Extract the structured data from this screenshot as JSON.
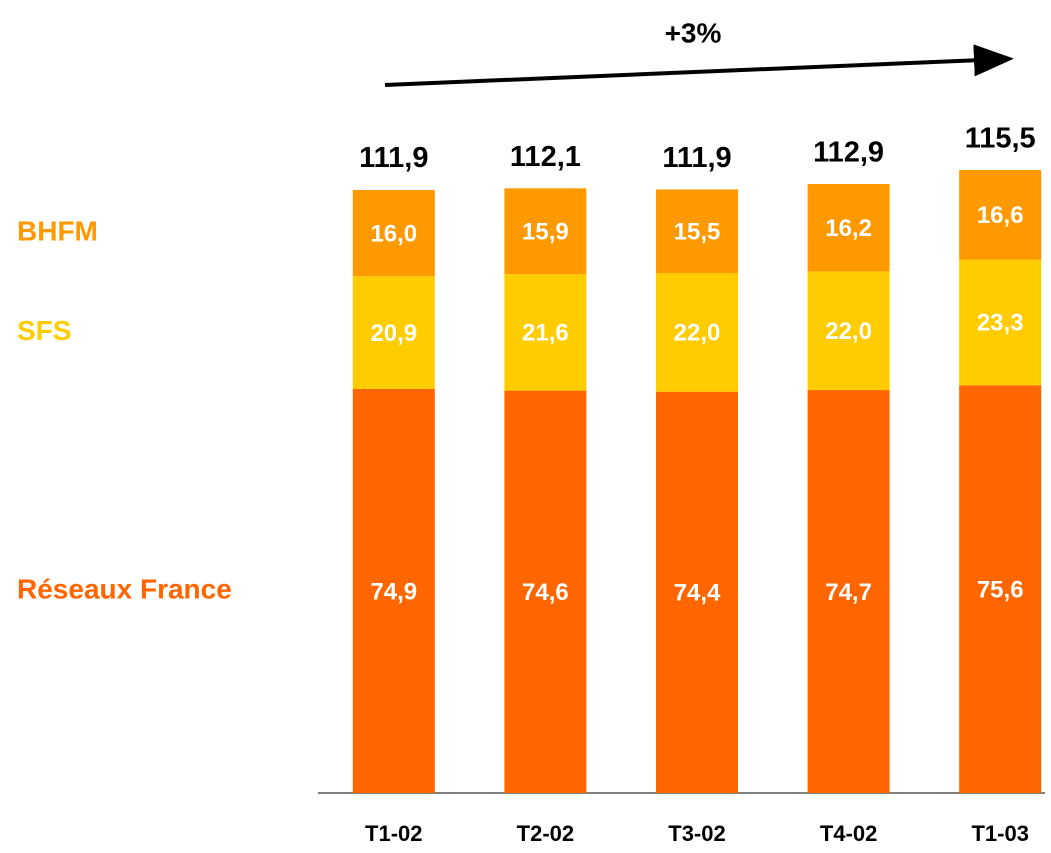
{
  "chart_data": {
    "type": "stacked-bar",
    "annotation": "+3%",
    "categories": [
      "T1-02",
      "T2-02",
      "T3-02",
      "T4-02",
      "T1-03"
    ],
    "series": [
      {
        "name": "Réseaux France",
        "color": "#ff6600",
        "values": [
          74.9,
          74.6,
          74.4,
          74.7,
          75.6
        ],
        "value_labels": [
          "74,9",
          "74,6",
          "74,4",
          "74,7",
          "75,6"
        ]
      },
      {
        "name": "SFS",
        "color": "#ffcc00",
        "values": [
          20.9,
          21.6,
          22.0,
          22.0,
          23.3
        ],
        "value_labels": [
          "20,9",
          "21,6",
          "22,0",
          "22,0",
          "23,3"
        ]
      },
      {
        "name": "BHFM",
        "color": "#ff9900",
        "values": [
          16.0,
          15.9,
          15.5,
          16.2,
          16.6
        ],
        "value_labels": [
          "16,0",
          "15,9",
          "15,5",
          "16,2",
          "16,6"
        ]
      }
    ],
    "totals": [
      111.9,
      112.1,
      111.9,
      112.9,
      115.5
    ],
    "total_labels": [
      "111,9",
      "112,1",
      "111,9",
      "112,9",
      "115,5"
    ]
  }
}
